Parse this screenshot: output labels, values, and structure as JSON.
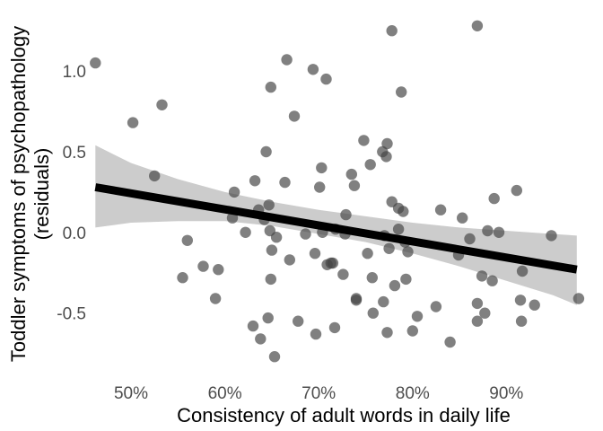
{
  "chart_data": {
    "type": "scatter",
    "title": "",
    "xlabel": "Consistency of adult words in daily life",
    "ylabel": [
      "Toddler symptoms of psychopathology",
      "(residuals)"
    ],
    "x_unit": "percent",
    "xlim": [
      45.6,
      98.0
    ],
    "ylim": [
      -0.83,
      1.34
    ],
    "x_ticks": [
      50,
      60,
      70,
      80,
      90
    ],
    "x_tick_labels": [
      "50%",
      "60%",
      "70%",
      "80%",
      "90%"
    ],
    "y_ticks": [
      1.0,
      0.5,
      0.0,
      -0.5
    ],
    "y_tick_labels": [
      "1.0",
      "0.5",
      "0.0",
      "-0.5"
    ],
    "grid": false,
    "point_color": "#444444",
    "line_color": "#000000",
    "band_color": "#cccccc",
    "points": [
      {
        "x": 46.2,
        "y": 1.05
      },
      {
        "x": 50.2,
        "y": 0.68
      },
      {
        "x": 52.5,
        "y": 0.35
      },
      {
        "x": 53.3,
        "y": 0.79
      },
      {
        "x": 55.5,
        "y": -0.28
      },
      {
        "x": 56.0,
        "y": -0.05
      },
      {
        "x": 57.7,
        "y": -0.21
      },
      {
        "x": 59.0,
        "y": -0.41
      },
      {
        "x": 59.3,
        "y": -0.23
      },
      {
        "x": 60.8,
        "y": 0.09
      },
      {
        "x": 61.0,
        "y": 0.25
      },
      {
        "x": 62.2,
        "y": 0.0
      },
      {
        "x": 63.0,
        "y": -0.58
      },
      {
        "x": 63.2,
        "y": 0.32
      },
      {
        "x": 63.6,
        "y": 0.14
      },
      {
        "x": 63.8,
        "y": -0.66
      },
      {
        "x": 64.2,
        "y": 0.08
      },
      {
        "x": 64.4,
        "y": 0.5
      },
      {
        "x": 64.6,
        "y": -0.53
      },
      {
        "x": 64.7,
        "y": 0.17
      },
      {
        "x": 64.8,
        "y": 0.01
      },
      {
        "x": 64.9,
        "y": 0.9
      },
      {
        "x": 64.9,
        "y": -0.29
      },
      {
        "x": 65.0,
        "y": -0.11
      },
      {
        "x": 65.3,
        "y": -0.77
      },
      {
        "x": 65.5,
        "y": -0.03
      },
      {
        "x": 66.4,
        "y": 0.31
      },
      {
        "x": 66.6,
        "y": 1.07
      },
      {
        "x": 66.9,
        "y": -0.17
      },
      {
        "x": 67.4,
        "y": 0.72
      },
      {
        "x": 67.8,
        "y": -0.55
      },
      {
        "x": 68.6,
        "y": -0.01
      },
      {
        "x": 69.4,
        "y": 1.01
      },
      {
        "x": 69.6,
        "y": -0.13
      },
      {
        "x": 69.7,
        "y": -0.63
      },
      {
        "x": 70.1,
        "y": 0.28
      },
      {
        "x": 70.3,
        "y": 0.4
      },
      {
        "x": 70.4,
        "y": 0.0
      },
      {
        "x": 70.8,
        "y": 0.95
      },
      {
        "x": 70.9,
        "y": -0.2
      },
      {
        "x": 71.3,
        "y": -0.19
      },
      {
        "x": 71.5,
        "y": -0.19
      },
      {
        "x": 71.7,
        "y": -0.59
      },
      {
        "x": 71.8,
        "y": 0.02
      },
      {
        "x": 72.6,
        "y": -0.26
      },
      {
        "x": 72.8,
        "y": -0.01
      },
      {
        "x": 72.9,
        "y": 0.11
      },
      {
        "x": 73.5,
        "y": 0.36
      },
      {
        "x": 73.8,
        "y": 0.29
      },
      {
        "x": 74.0,
        "y": -0.41
      },
      {
        "x": 74.0,
        "y": -0.42
      },
      {
        "x": 74.8,
        "y": 0.57
      },
      {
        "x": 75.2,
        "y": -0.13
      },
      {
        "x": 75.5,
        "y": 0.42
      },
      {
        "x": 75.7,
        "y": -0.28
      },
      {
        "x": 75.8,
        "y": -0.5
      },
      {
        "x": 76.8,
        "y": 0.5
      },
      {
        "x": 76.9,
        "y": -0.43
      },
      {
        "x": 77.0,
        "y": -0.02
      },
      {
        "x": 77.2,
        "y": 0.47
      },
      {
        "x": 77.3,
        "y": 0.55
      },
      {
        "x": 77.3,
        "y": -0.62
      },
      {
        "x": 77.5,
        "y": -0.1
      },
      {
        "x": 77.8,
        "y": 0.19
      },
      {
        "x": 77.8,
        "y": 1.25
      },
      {
        "x": 78.1,
        "y": -0.33
      },
      {
        "x": 78.5,
        "y": 0.15
      },
      {
        "x": 78.5,
        "y": 0.02
      },
      {
        "x": 78.8,
        "y": 0.87
      },
      {
        "x": 79.0,
        "y": 0.13
      },
      {
        "x": 79.2,
        "y": -0.06
      },
      {
        "x": 79.3,
        "y": -0.29
      },
      {
        "x": 79.5,
        "y": -0.12
      },
      {
        "x": 80.0,
        "y": -0.61
      },
      {
        "x": 80.5,
        "y": -0.52
      },
      {
        "x": 82.5,
        "y": -0.46
      },
      {
        "x": 83.0,
        "y": 0.14
      },
      {
        "x": 84.0,
        "y": -0.68
      },
      {
        "x": 84.9,
        "y": -0.14
      },
      {
        "x": 85.3,
        "y": 0.09
      },
      {
        "x": 86.1,
        "y": -0.04
      },
      {
        "x": 86.9,
        "y": -0.55
      },
      {
        "x": 86.9,
        "y": -0.44
      },
      {
        "x": 86.9,
        "y": 1.28
      },
      {
        "x": 87.4,
        "y": -0.27
      },
      {
        "x": 87.7,
        "y": -0.5
      },
      {
        "x": 88.0,
        "y": 0.01
      },
      {
        "x": 88.5,
        "y": -0.3
      },
      {
        "x": 88.7,
        "y": 0.21
      },
      {
        "x": 89.2,
        "y": 0.0
      },
      {
        "x": 91.1,
        "y": 0.26
      },
      {
        "x": 91.5,
        "y": -0.42
      },
      {
        "x": 91.6,
        "y": -0.55
      },
      {
        "x": 91.7,
        "y": -0.24
      },
      {
        "x": 93.0,
        "y": -0.45
      },
      {
        "x": 94.8,
        "y": -0.02
      },
      {
        "x": 97.7,
        "y": -0.41
      }
    ],
    "fit_line": {
      "x": [
        46.2,
        97.5
      ],
      "y": [
        0.28,
        -0.23
      ]
    },
    "confidence_band": {
      "x": [
        46.2,
        50,
        55,
        60,
        65,
        70,
        75,
        80,
        85,
        90,
        95,
        97.5
      ],
      "upper": [
        0.54,
        0.43,
        0.33,
        0.25,
        0.19,
        0.14,
        0.1,
        0.06,
        0.03,
        0.01,
        -0.01,
        -0.02
      ],
      "lower": [
        0.03,
        0.06,
        0.07,
        0.07,
        0.04,
        -0.01,
        -0.06,
        -0.13,
        -0.21,
        -0.3,
        -0.39,
        -0.45
      ]
    }
  }
}
